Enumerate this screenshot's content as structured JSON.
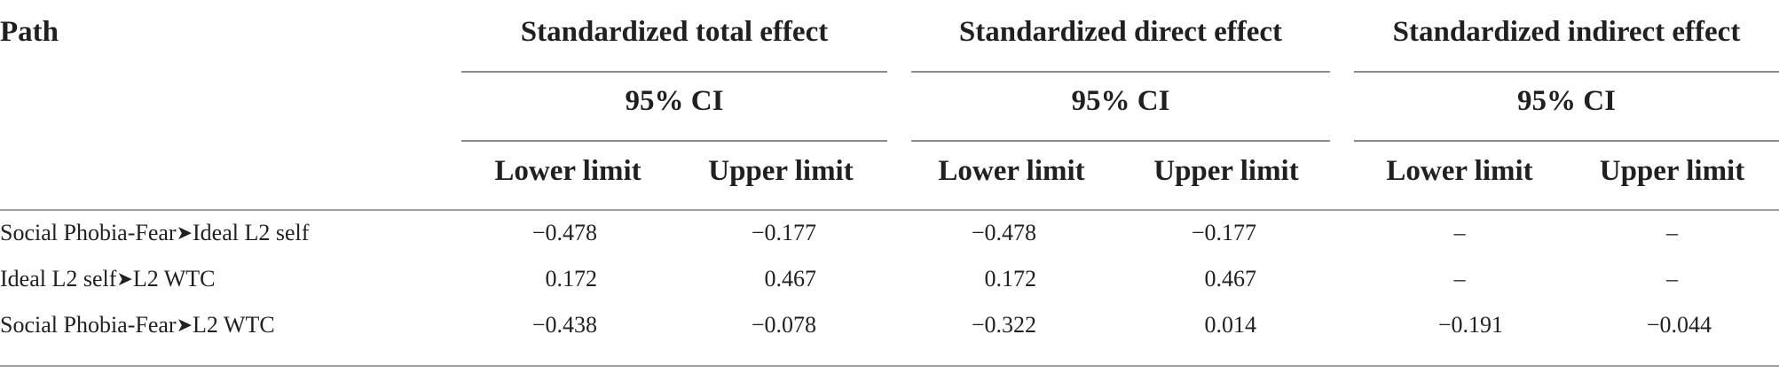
{
  "table": {
    "path_header": "Path",
    "groups": [
      {
        "title": "Standardized total effect",
        "ci": "95% CI",
        "lower": "Lower limit",
        "upper": "Upper limit"
      },
      {
        "title": "Standardized direct effect",
        "ci": "95% CI",
        "lower": "Lower limit",
        "upper": "Upper limit"
      },
      {
        "title": "Standardized indirect effect",
        "ci": "95% CI",
        "lower": "Lower limit",
        "upper": "Upper limit"
      }
    ],
    "rows": [
      {
        "from": "Social Phobia-Fear",
        "to": "Ideal L2 self",
        "values": [
          "−0.478",
          "−0.177",
          "−0.478",
          "−0.177",
          "–",
          "–"
        ]
      },
      {
        "from": "Ideal L2 self",
        "to": "L2 WTC",
        "values": [
          "0.172",
          "0.467",
          "0.172",
          "0.467",
          "–",
          "–"
        ]
      },
      {
        "from": "Social Phobia-Fear",
        "to": "L2 WTC",
        "values": [
          "−0.438",
          "−0.078",
          "−0.322",
          "0.014",
          "−0.191",
          "−0.044"
        ]
      }
    ]
  }
}
